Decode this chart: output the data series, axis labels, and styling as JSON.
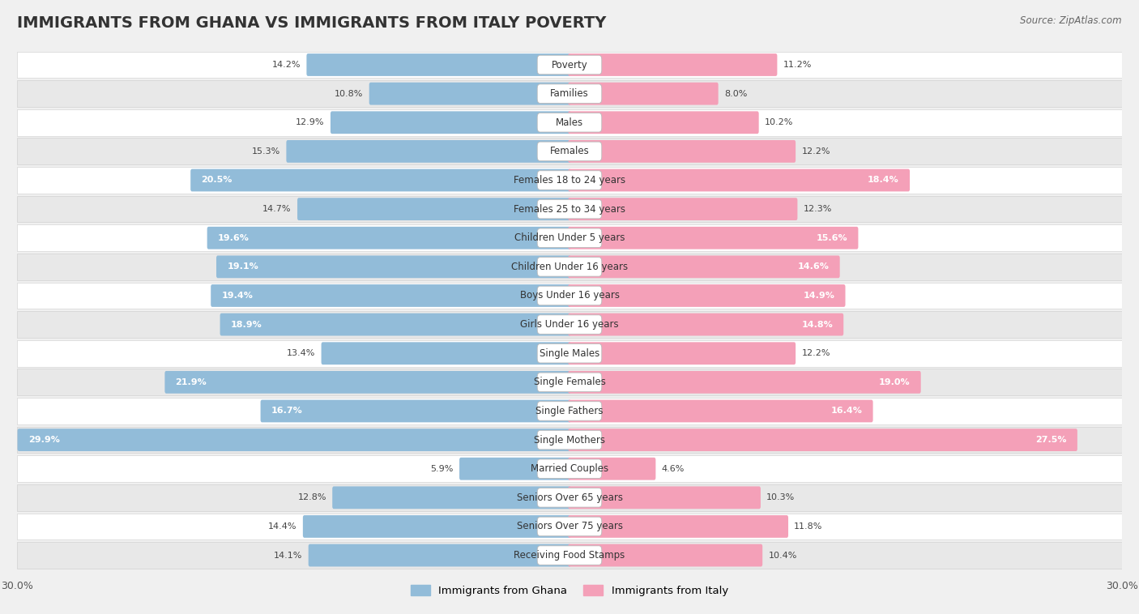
{
  "title": "IMMIGRANTS FROM GHANA VS IMMIGRANTS FROM ITALY POVERTY",
  "source": "Source: ZipAtlas.com",
  "categories": [
    "Poverty",
    "Families",
    "Males",
    "Females",
    "Females 18 to 24 years",
    "Females 25 to 34 years",
    "Children Under 5 years",
    "Children Under 16 years",
    "Boys Under 16 years",
    "Girls Under 16 years",
    "Single Males",
    "Single Females",
    "Single Fathers",
    "Single Mothers",
    "Married Couples",
    "Seniors Over 65 years",
    "Seniors Over 75 years",
    "Receiving Food Stamps"
  ],
  "ghana_values": [
    14.2,
    10.8,
    12.9,
    15.3,
    20.5,
    14.7,
    19.6,
    19.1,
    19.4,
    18.9,
    13.4,
    21.9,
    16.7,
    29.9,
    5.9,
    12.8,
    14.4,
    14.1
  ],
  "italy_values": [
    11.2,
    8.0,
    10.2,
    12.2,
    18.4,
    12.3,
    15.6,
    14.6,
    14.9,
    14.8,
    12.2,
    19.0,
    16.4,
    27.5,
    4.6,
    10.3,
    11.8,
    10.4
  ],
  "ghana_color": "#92bcd9",
  "italy_color": "#f4a0b8",
  "ghana_label": "Immigrants from Ghana",
  "italy_label": "Immigrants from Italy",
  "max_val": 30.0,
  "bg_color": "#f0f0f0",
  "row_bg_white": "#ffffff",
  "row_bg_light": "#e8e8e8",
  "title_fontsize": 14,
  "label_fontsize": 8.5,
  "value_fontsize": 8.0,
  "axis_label_fontsize": 9,
  "thresh_ghana": 16.5,
  "thresh_italy": 14.5
}
